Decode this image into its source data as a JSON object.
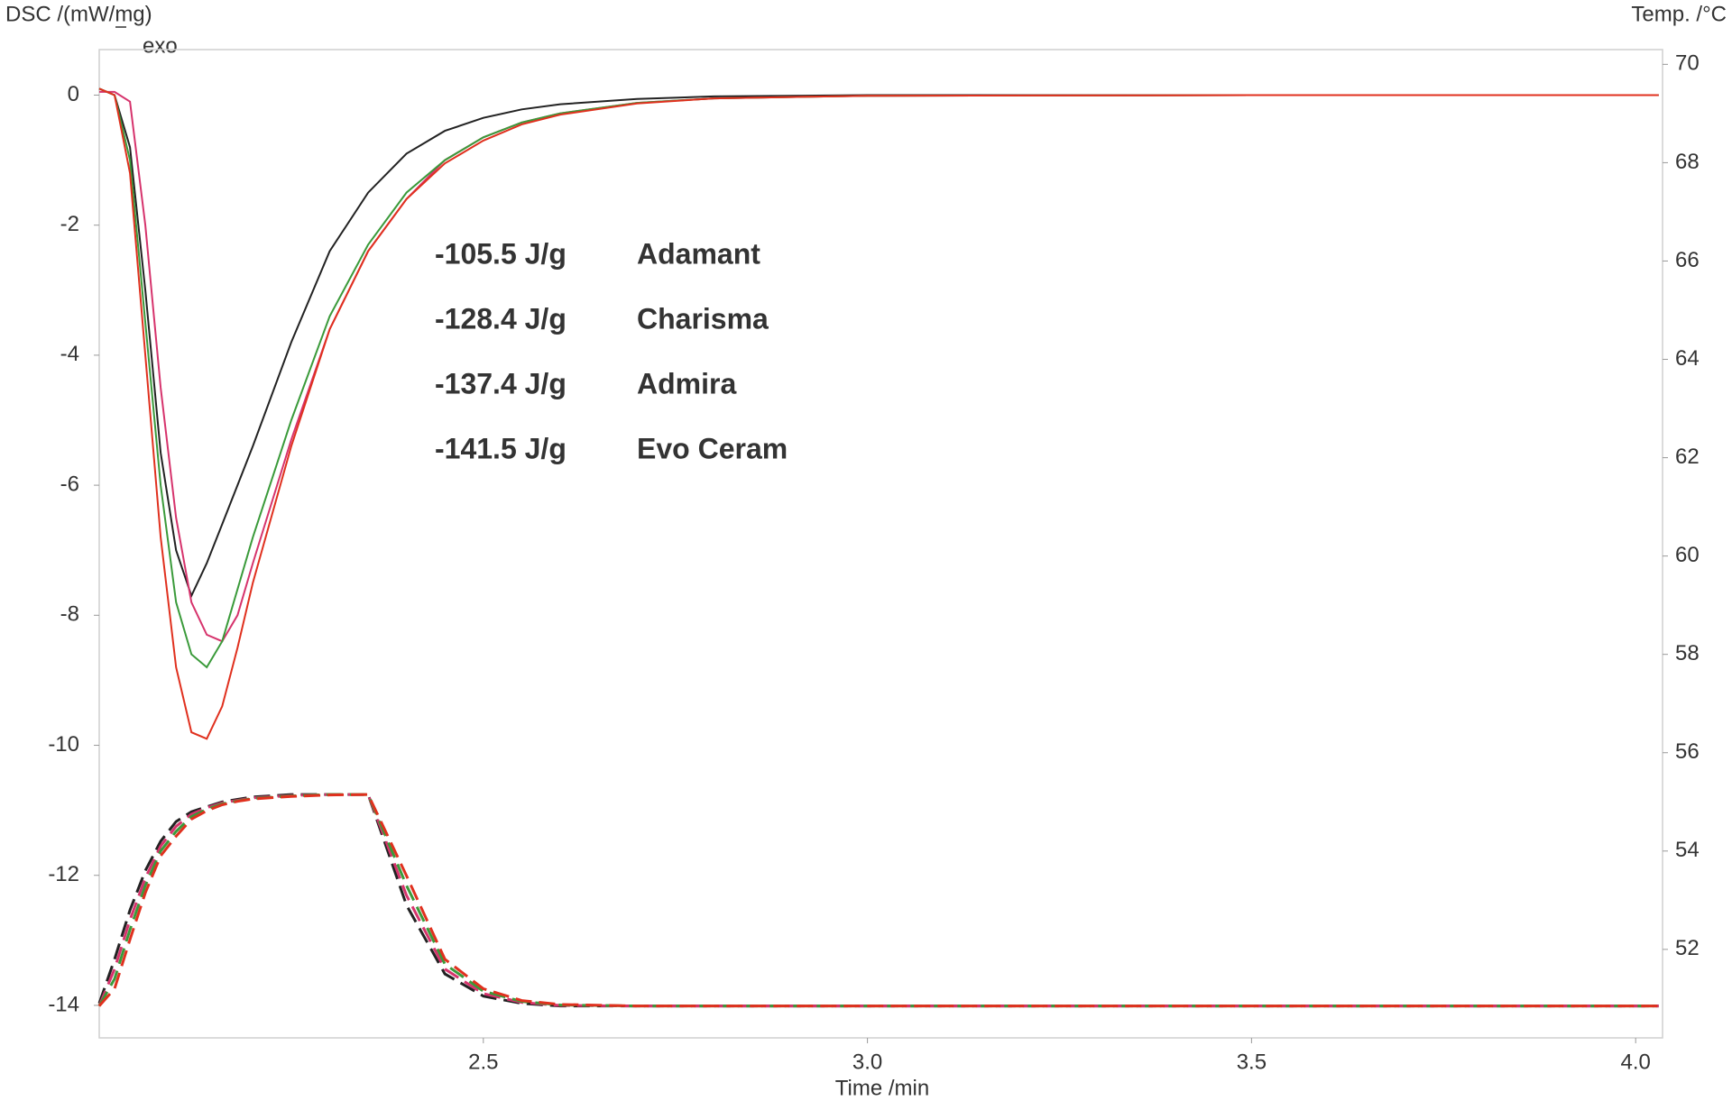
{
  "chart_data": {
    "type": "line",
    "y_title": "DSC /(mW/mg)",
    "exo_label": "exo",
    "y2_title": "Temp. /°C",
    "x_title": "Time /min",
    "x": [
      2.0,
      2.02,
      2.04,
      2.06,
      2.08,
      2.1,
      2.12,
      2.14,
      2.16,
      2.18,
      2.2,
      2.25,
      2.3,
      2.35,
      2.4,
      2.45,
      2.5,
      2.55,
      2.6,
      2.7,
      2.8,
      3.0,
      3.5,
      4.03
    ],
    "xlim": [
      2.0,
      4.035
    ],
    "xticks": [
      2.5,
      {
        "value": 3,
        "label": "3.0"
      },
      3.5,
      {
        "value": 4,
        "label": "4.0"
      }
    ],
    "ylim": [
      -14.5,
      0.7
    ],
    "yticks": [
      0,
      -2,
      -4,
      -6,
      -8,
      -10,
      -12,
      -14
    ],
    "y2lim": [
      50.2,
      70.3
    ],
    "y2ticks": [
      52,
      54,
      56,
      58,
      60,
      62,
      64,
      66,
      68,
      70
    ],
    "series": [
      {
        "name": "Adamant",
        "label": "-105.5 J/g",
        "color": "#222222",
        "values": [
          0.1,
          0.0,
          -0.8,
          -3.0,
          -5.5,
          -7.0,
          -7.7,
          -7.2,
          -6.6,
          -6.0,
          -5.4,
          -3.8,
          -2.4,
          -1.5,
          -0.9,
          -0.55,
          -0.35,
          -0.22,
          -0.14,
          -0.06,
          -0.02,
          0,
          0,
          0
        ]
      },
      {
        "name": "Charisma",
        "label": "-128.4 J/g",
        "color": "#d6336c",
        "values": [
          0.05,
          0.05,
          -0.1,
          -2.0,
          -4.5,
          -6.5,
          -7.8,
          -8.3,
          -8.4,
          -8.0,
          -7.2,
          -5.3,
          -3.6,
          -2.4,
          -1.6,
          -1.0,
          -0.65,
          -0.42,
          -0.28,
          -0.12,
          -0.05,
          -0.01,
          0,
          0
        ]
      },
      {
        "name": "Admira",
        "label": "-137.4 J/g",
        "color": "#3a9a3a",
        "values": [
          0.1,
          0.0,
          -1.0,
          -3.5,
          -6.0,
          -7.8,
          -8.6,
          -8.8,
          -8.4,
          -7.6,
          -6.8,
          -5.0,
          -3.4,
          -2.3,
          -1.5,
          -1.0,
          -0.65,
          -0.42,
          -0.28,
          -0.12,
          -0.05,
          -0.01,
          0,
          0
        ]
      },
      {
        "name": "Evo Ceram",
        "label": "-141.5 J/g",
        "color": "#e0301e",
        "values": [
          0.1,
          0.0,
          -1.2,
          -4.0,
          -6.8,
          -8.8,
          -9.8,
          -9.9,
          -9.4,
          -8.5,
          -7.5,
          -5.4,
          -3.6,
          -2.4,
          -1.6,
          -1.05,
          -0.7,
          -0.45,
          -0.3,
          -0.13,
          -0.05,
          -0.01,
          0,
          0
        ]
      },
      {
        "axis": "y2",
        "dashed": true,
        "color": "#222222",
        "values": [
          50.9,
          51.8,
          52.8,
          53.6,
          54.2,
          54.6,
          54.8,
          54.9,
          55.0,
          55.05,
          55.1,
          55.15,
          55.15,
          55.15,
          52.9,
          51.5,
          51.05,
          50.9,
          50.85,
          50.85,
          50.85,
          50.85,
          50.85,
          50.85
        ]
      },
      {
        "axis": "y2",
        "dashed": true,
        "color": "#d6336c",
        "values": [
          50.85,
          51.6,
          52.6,
          53.45,
          54.1,
          54.5,
          54.75,
          54.88,
          54.98,
          55.03,
          55.08,
          55.13,
          55.15,
          55.15,
          53.1,
          51.6,
          51.1,
          50.92,
          50.86,
          50.85,
          50.85,
          50.85,
          50.85,
          50.85
        ]
      },
      {
        "axis": "y2",
        "dashed": true,
        "color": "#3a9a3a",
        "values": [
          50.85,
          51.4,
          52.4,
          53.3,
          54.0,
          54.4,
          54.7,
          54.85,
          54.96,
          55.02,
          55.07,
          55.12,
          55.15,
          55.15,
          53.3,
          51.7,
          51.15,
          50.94,
          50.87,
          50.85,
          50.85,
          50.85,
          50.85,
          50.85
        ]
      },
      {
        "axis": "y2",
        "dashed": true,
        "color": "#e0301e",
        "values": [
          50.85,
          51.2,
          52.2,
          53.15,
          53.9,
          54.3,
          54.65,
          54.82,
          54.94,
          55.01,
          55.06,
          55.11,
          55.14,
          55.15,
          53.5,
          51.8,
          51.2,
          50.96,
          50.88,
          50.85,
          50.85,
          50.85,
          50.85,
          50.85
        ]
      }
    ]
  }
}
